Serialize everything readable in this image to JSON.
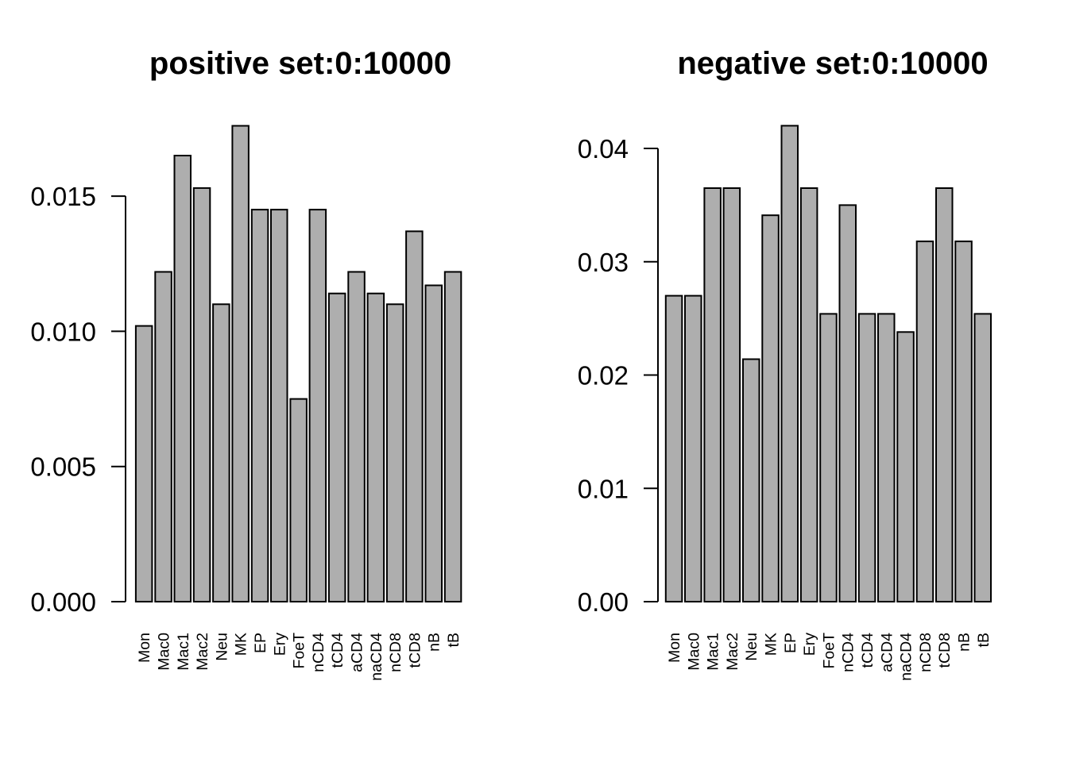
{
  "figure": {
    "background": "#ffffff",
    "bar_fill": "#aeaeae",
    "bar_stroke": "#000000",
    "axis_color": "#000000",
    "text_color": "#000000"
  },
  "chart_data": [
    {
      "type": "bar",
      "title": "positive set:0:10000",
      "categories": [
        "Mon",
        "Mac0",
        "Mac1",
        "Mac2",
        "Neu",
        "MK",
        "EP",
        "Ery",
        "FoeT",
        "nCD4",
        "tCD4",
        "aCD4",
        "naCD4",
        "nCD8",
        "tCD8",
        "nB",
        "tB"
      ],
      "values": [
        0.0102,
        0.0122,
        0.0165,
        0.0153,
        0.011,
        0.0176,
        0.0145,
        0.0145,
        0.0075,
        0.0145,
        0.0114,
        0.0122,
        0.0114,
        0.011,
        0.0137,
        0.0117,
        0.0122
      ],
      "xlabel": "",
      "ylabel": "",
      "ylim": [
        0,
        0.0176
      ],
      "yticks": [
        0,
        0.005,
        0.01,
        0.015
      ],
      "ytick_labels": [
        "0.000",
        "0.005",
        "0.010",
        "0.015"
      ],
      "grid": false,
      "legend": null
    },
    {
      "type": "bar",
      "title": "negative set:0:10000",
      "categories": [
        "Mon",
        "Mac0",
        "Mac1",
        "Mac2",
        "Neu",
        "MK",
        "EP",
        "Ery",
        "FoeT",
        "nCD4",
        "tCD4",
        "aCD4",
        "naCD4",
        "nCD8",
        "tCD8",
        "nB",
        "tB"
      ],
      "values": [
        0.027,
        0.027,
        0.0365,
        0.0365,
        0.0214,
        0.0341,
        0.042,
        0.0365,
        0.0254,
        0.035,
        0.0254,
        0.0254,
        0.0238,
        0.0318,
        0.0365,
        0.0318,
        0.0254
      ],
      "xlabel": "",
      "ylabel": "",
      "ylim": [
        0,
        0.042
      ],
      "yticks": [
        0,
        0.01,
        0.02,
        0.03,
        0.04
      ],
      "ytick_labels": [
        "0.00",
        "0.01",
        "0.02",
        "0.03",
        "0.04"
      ],
      "grid": false,
      "legend": null
    }
  ]
}
